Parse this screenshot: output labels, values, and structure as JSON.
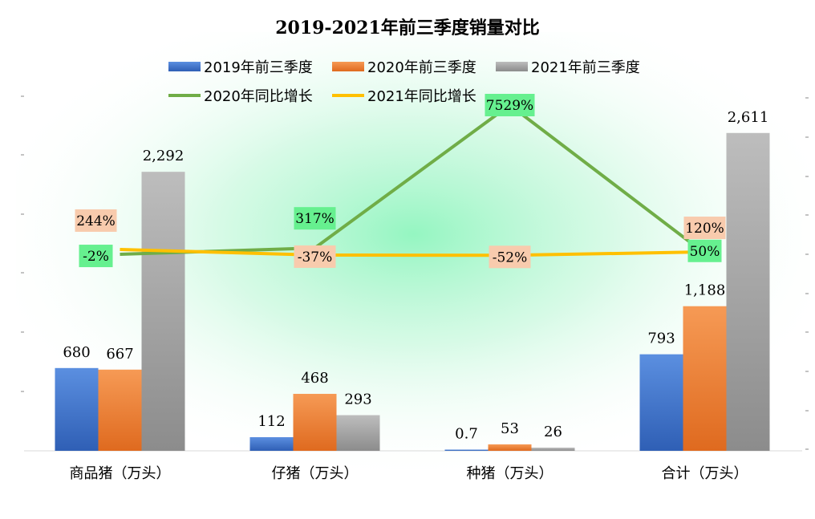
{
  "chart_data": {
    "type": "bar",
    "title": "2019-2021年前三季度销量对比",
    "categories": [
      "商品猪（万头）",
      "仔猪（万头）",
      "种猪（万头）",
      "合计（万头）"
    ],
    "series": [
      {
        "name": "2019年前三季度",
        "values": [
          680,
          112,
          0.7,
          793
        ],
        "labels": [
          "680",
          "112",
          "0.7",
          "793"
        ],
        "color": "#4472C4"
      },
      {
        "name": "2020年前三季度",
        "values": [
          667,
          468,
          53,
          1188
        ],
        "labels": [
          "667",
          "468",
          "53",
          "1,188"
        ],
        "color": "#ED7D31"
      },
      {
        "name": "2021年前三季度",
        "values": [
          2292,
          293,
          26,
          2611
        ],
        "labels": [
          "2,292",
          "293",
          "26",
          "2,611"
        ],
        "color": "#A5A5A5"
      }
    ],
    "line_series": [
      {
        "name": "2020年同比增长",
        "values": [
          -2,
          317,
          7529,
          50
        ],
        "labels": [
          "-2%",
          "317%",
          "7529%",
          "50%"
        ],
        "color": "#70AD47",
        "label_bg": "#66F08F"
      },
      {
        "name": "2021年同比增长",
        "values": [
          244,
          -37,
          -52,
          120
        ],
        "labels": [
          "244%",
          "-37%",
          "-52%",
          "120%"
        ],
        "color": "#FFC000",
        "label_bg": "#F8CBAD"
      }
    ],
    "ylim_left": [
      0,
      3000
    ],
    "ylim_right": [
      -500,
      8500
    ],
    "legend": "top"
  }
}
